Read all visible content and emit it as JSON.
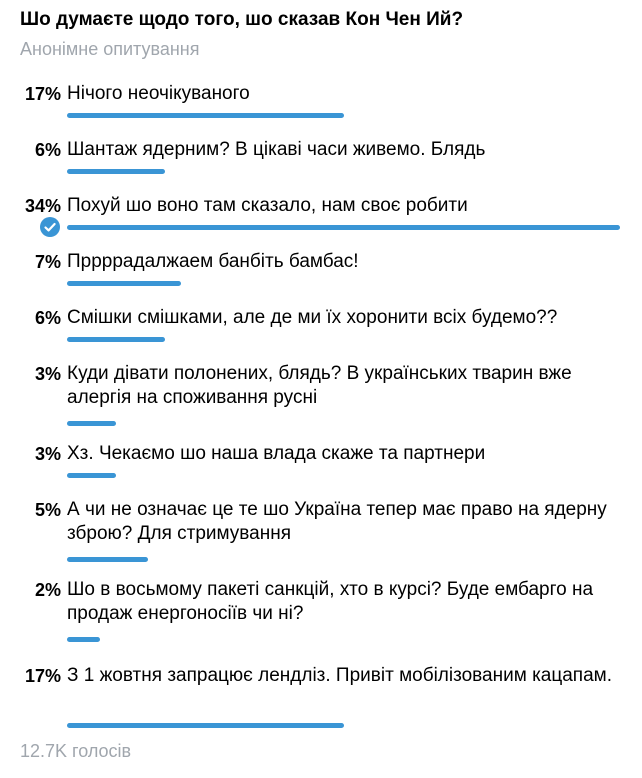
{
  "poll": {
    "question": "Шо думаєте щодо того, шо сказав Кон Чен Ий?",
    "type": "Анонімне опитування",
    "options": [
      {
        "percent_label": "17%",
        "percent": 17,
        "text": "Нічого неочікуваного"
      },
      {
        "percent_label": "6%",
        "percent": 6,
        "text": "Шантаж ядерним? В цікаві часи живемо. Блядь"
      },
      {
        "percent_label": "34%",
        "percent": 34,
        "text": "Похуй шо воно там сказало, нам своє робити",
        "selected": true
      },
      {
        "percent_label": "7%",
        "percent": 7,
        "text": "Пррррадалжаем банбіть бамбас!"
      },
      {
        "percent_label": "6%",
        "percent": 6,
        "text": "Смішки смішками, але де ми їх хоронити всіх будемо??"
      },
      {
        "percent_label": "3%",
        "percent": 3,
        "text": "Куди дівати полонених, блядь? В українських тварин вже алергія на споживання русні"
      },
      {
        "percent_label": "3%",
        "percent": 3,
        "text": "Хз. Чекаємо шо наша влада скаже та партнери"
      },
      {
        "percent_label": "5%",
        "percent": 5,
        "text": "А чи не означає це те шо Україна тепер має право на ядерну зброю? Для стримування"
      },
      {
        "percent_label": "2%",
        "percent": 2,
        "text": "Шо в восьмому пакеті санкцій, хто в курсі? Буде ембарго на продаж енергоносіїв чи ні?"
      },
      {
        "percent_label": "17%",
        "percent": 17,
        "text": "З 1 жовтня запрацює лендліз. Привіт  мобілізованим кацапам."
      }
    ],
    "votes": "12.7K голосів"
  },
  "colors": {
    "accent": "#3a95d5",
    "muted": "#a0a6ad"
  },
  "icons": {
    "selected": "checkmark-icon"
  }
}
